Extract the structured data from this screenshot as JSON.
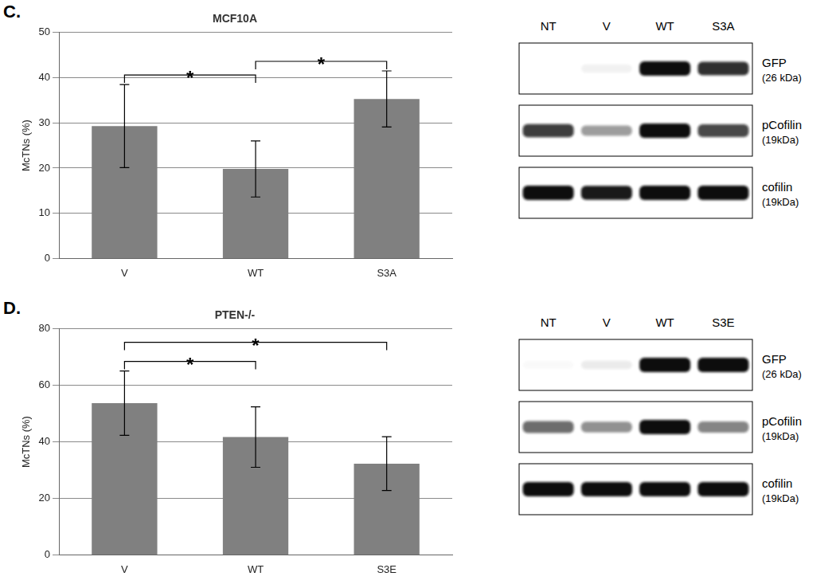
{
  "panel_labels": [
    "C.",
    "D."
  ],
  "chart_data": [
    {
      "type": "bar",
      "title": "MCF10A",
      "y_label": "McTNs (%)",
      "categories": [
        "V",
        "WT",
        "S3A"
      ],
      "values": [
        29.3,
        19.8,
        35.3
      ],
      "errors": [
        9.2,
        6.2,
        6.2
      ],
      "color": "#808080",
      "ylim": [
        0,
        50
      ],
      "yticks": [
        0,
        10,
        20,
        30,
        40,
        50
      ],
      "grid": true,
      "annotations": [
        {
          "text": "*",
          "from": "V",
          "to": "WT"
        },
        {
          "text": "*",
          "from": "WT",
          "to": "S3A"
        }
      ]
    },
    {
      "type": "bar",
      "title": "PTEN-/-",
      "y_label": "McTNs (%)",
      "categories": [
        "V",
        "WT",
        "S3E"
      ],
      "values": [
        53.7,
        41.7,
        32.3
      ],
      "errors": [
        11.4,
        10.7,
        9.5
      ],
      "color": "#808080",
      "ylim": [
        0,
        80
      ],
      "yticks": [
        0,
        20,
        40,
        60,
        80
      ],
      "grid": true,
      "annotations": [
        {
          "text": "*",
          "from": "V",
          "to": "WT"
        },
        {
          "text": "*",
          "from": "V",
          "to": "S3E"
        }
      ]
    }
  ],
  "blots": [
    {
      "lanes": [
        "NT",
        "V",
        "WT",
        "S3A"
      ],
      "rows": [
        {
          "label": "GFP",
          "size": "(26 kDa)",
          "intensity": [
            0,
            0.05,
            1,
            0.85
          ]
        },
        {
          "label": "pCofilin",
          "size": "(19kDa)",
          "intensity": [
            0.8,
            0.4,
            1,
            0.75
          ]
        },
        {
          "label": "cofilin",
          "size": "(19kDa)",
          "intensity": [
            1,
            0.95,
            1,
            1
          ]
        }
      ]
    },
    {
      "lanes": [
        "NT",
        "V",
        "WT",
        "S3E"
      ],
      "rows": [
        {
          "label": "GFP",
          "size": "(26 kDa)",
          "intensity": [
            0.02,
            0.08,
            1,
            1
          ]
        },
        {
          "label": "pCofilin",
          "size": "(19kDa)",
          "intensity": [
            0.6,
            0.45,
            1,
            0.5
          ]
        },
        {
          "label": "cofilin",
          "size": "(19kDa)",
          "intensity": [
            1,
            1,
            1,
            1
          ]
        }
      ]
    }
  ]
}
